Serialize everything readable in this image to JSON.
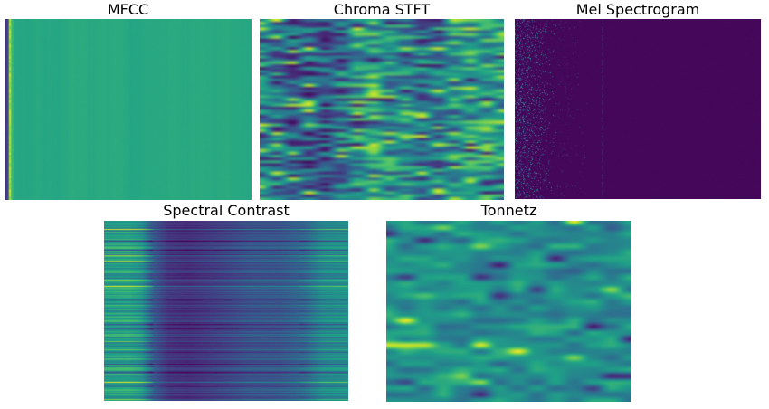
{
  "figure": {
    "background": "#ffffff",
    "title_color": "#000000"
  },
  "colormap_stops": [
    "#440154",
    "#46327e",
    "#365c8d",
    "#277f8e",
    "#1fa187",
    "#4ac16d",
    "#a0da39",
    "#fde725"
  ],
  "chart_data": [
    {
      "id": "mfcc",
      "type": "heatmap",
      "title": "MFCC",
      "colormap": "viridis",
      "pattern": "mfcc",
      "seed": 7,
      "base_value": 0.6,
      "left_stripes": [
        {
          "cols": [
            0,
            1
          ],
          "value": 0.13
        },
        {
          "cols": [
            2,
            3
          ],
          "value": 0.2
        },
        {
          "cols": [
            4,
            4
          ],
          "value": 0.45
        },
        {
          "cols": [
            5,
            6
          ],
          "value": 0.88
        },
        {
          "cols": [
            7,
            7
          ],
          "value": 0.72
        },
        {
          "cols": [
            8,
            9
          ],
          "value": 0.66
        }
      ],
      "approx_colors": {
        "background": "#26a783",
        "dark_stripe": "#46327e",
        "bright_stripe": "#c8e02c"
      }
    },
    {
      "id": "chroma",
      "type": "heatmap",
      "title": "Chroma STFT",
      "colormap": "viridis",
      "pattern": "chroma",
      "seed": 13,
      "rows": 64,
      "cols": 16,
      "col_bias": [
        0.45,
        0.42,
        0.3,
        0.28,
        0.3,
        0.4,
        0.52,
        0.58,
        0.5,
        0.45,
        0.38,
        0.42,
        0.5,
        0.55,
        0.58,
        0.52
      ],
      "cell_noise": 0.55,
      "bright_prob": 0.07,
      "bright_value": 0.93,
      "dark_prob": 0.07,
      "dark_value": 0.07,
      "approx_colors": {
        "bright": "#fde725",
        "mid": "#2aa884",
        "dark": "#3b528b"
      }
    },
    {
      "id": "mel",
      "type": "heatmap",
      "title": "Mel Spectrogram",
      "colormap": "viridis",
      "pattern": "mel",
      "seed": 5,
      "base_value": 0.02,
      "speckle_zone": 0.17,
      "speckle_prob": 0.5,
      "dash_line_x": 0.355,
      "approx_colors": {
        "background": "#440a57",
        "speckle": "#31688e"
      }
    },
    {
      "id": "contrast",
      "type": "heatmap",
      "title": "Spectral Contrast",
      "colormap": "viridis",
      "pattern": "contrast",
      "seed": 21,
      "profile": [
        [
          0,
          0.56
        ],
        [
          0.1,
          0.58
        ],
        [
          0.15,
          0.52
        ],
        [
          0.2,
          0.28
        ],
        [
          0.26,
          0.16
        ],
        [
          0.34,
          0.14
        ],
        [
          0.44,
          0.18
        ],
        [
          0.6,
          0.26
        ],
        [
          0.72,
          0.27
        ],
        [
          0.82,
          0.33
        ],
        [
          0.9,
          0.47
        ],
        [
          1,
          0.5
        ]
      ],
      "row_mod": 0.12,
      "bright_row_prob": 0.08,
      "dark_row_prob": 0.1,
      "approx_colors": {
        "left_band": "#2fa884",
        "dark_band": "#46246a",
        "mid_band": "#3d4b8c",
        "right_band": "#27958a"
      }
    },
    {
      "id": "tonnetz",
      "type": "heatmap",
      "title": "Tonnetz",
      "colormap": "viridis",
      "pattern": "tonnetz",
      "seed": 42,
      "rows": 30,
      "cols": 14,
      "base_value": 0.5,
      "noise": 0.3,
      "bright_prob": 0.06,
      "dark_prob": 0.06,
      "approx_colors": {
        "background": "#23a182",
        "bright_blob": "#d8e219",
        "dark_streak": "#33638d"
      }
    }
  ]
}
